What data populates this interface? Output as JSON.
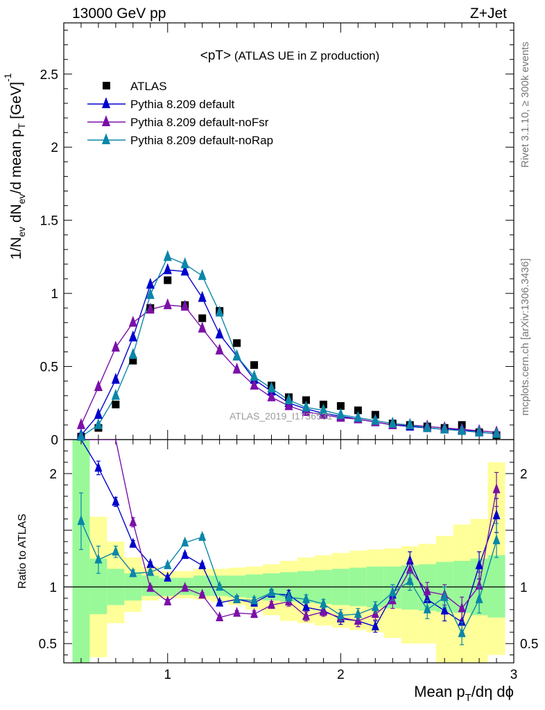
{
  "header": {
    "left": "13000 GeV pp",
    "right": "Z+Jet"
  },
  "side_labels": {
    "rivet": "Rivet 3.1.10, ≥ 300k events",
    "mcplots": "mcplots.cern.ch [arXiv:1306.3436]"
  },
  "main_plot": {
    "title_main": "<pT>",
    "title_sub": " (ATLAS UE in Z production)",
    "watermark": "ATLAS_2019_I1736531",
    "ylabel": "1/N_ev dN_ev/d mean p_T [GeV]^-1",
    "yticks": [
      {
        "v": 0,
        "label": "0"
      },
      {
        "v": 0.5,
        "label": "0.5"
      },
      {
        "v": 1,
        "label": "1"
      },
      {
        "v": 1.5,
        "label": "1.5"
      },
      {
        "v": 2,
        "label": "2"
      },
      {
        "v": 2.5,
        "label": "2.5"
      }
    ]
  },
  "ratio_plot": {
    "ylabel": "Ratio to ATLAS",
    "yticks": [
      {
        "v": 0.5,
        "label": "0.5"
      },
      {
        "v": 1,
        "label": "1"
      },
      {
        "v": 2,
        "label": "2"
      }
    ],
    "xlabel": "Mean p_T/dη dϕ",
    "xticks": [
      {
        "v": 1,
        "label": "1"
      },
      {
        "v": 2,
        "label": "2"
      },
      {
        "v": 3,
        "label": "3"
      }
    ]
  },
  "colors": {
    "atlas": "#000000",
    "default": "#0000cc",
    "nofsr": "#7a10a8",
    "norap": "#0a86a8",
    "band_inner": "#99f999",
    "band_outer": "#ffff99"
  },
  "chart_data": {
    "type": "scatter",
    "title": "<pT> (ATLAS UE in Z production)",
    "xlabel": "Mean p_T/dη dϕ",
    "ylabel": "1/N_ev dN_ev/d mean p_T [GeV]^-1",
    "xlim": [
      0.4,
      3.0
    ],
    "ylim": [
      0,
      2.85
    ],
    "ratio_ylim": [
      0.33,
      2.3
    ],
    "legend_position": "top-left",
    "x": [
      0.5,
      0.6,
      0.7,
      0.8,
      0.9,
      1.0,
      1.1,
      1.2,
      1.3,
      1.4,
      1.5,
      1.6,
      1.7,
      1.8,
      1.9,
      2.0,
      2.1,
      2.2,
      2.3,
      2.4,
      2.5,
      2.6,
      2.7,
      2.8,
      2.9
    ],
    "series": [
      {
        "name": "ATLAS",
        "color": "#000000",
        "marker": "square",
        "values": [
          0.02,
          0.08,
          0.24,
          0.54,
          0.9,
          1.09,
          0.92,
          0.83,
          0.88,
          0.66,
          0.51,
          0.37,
          0.29,
          0.27,
          0.24,
          0.23,
          0.2,
          0.17,
          0.11,
          0.1,
          0.09,
          0.08,
          0.1,
          0.05,
          0.03
        ],
        "ratio": [
          1.0,
          1.0,
          1.0,
          1.0,
          1.0,
          1.0,
          1.0,
          1.0,
          1.0,
          1.0,
          1.0,
          1.0,
          1.0,
          1.0,
          1.0,
          1.0,
          1.0,
          1.0,
          1.0,
          1.0,
          1.0,
          1.0,
          1.0,
          1.0,
          1.0
        ]
      },
      {
        "name": "Pythia 8.209 default",
        "color": "#0000cc",
        "marker": "triangle",
        "values": [
          0.03,
          0.17,
          0.41,
          0.7,
          1.06,
          1.16,
          1.15,
          0.97,
          0.72,
          0.57,
          0.41,
          0.33,
          0.25,
          0.21,
          0.18,
          0.16,
          0.14,
          0.12,
          0.1,
          0.09,
          0.08,
          0.07,
          0.07,
          0.05,
          0.04
        ],
        "ratio": [
          null,
          2.05,
          1.75,
          1.38,
          1.2,
          1.08,
          1.28,
          1.19,
          0.86,
          0.89,
          0.86,
          0.94,
          0.93,
          0.82,
          0.79,
          0.72,
          0.7,
          0.65,
          0.93,
          1.23,
          0.89,
          0.79,
          0.69,
          1.19,
          1.63
        ],
        "ratio_err": [
          0,
          0.06,
          0.04,
          0.03,
          0.02,
          0.02,
          0.02,
          0.02,
          0.02,
          0.03,
          0.03,
          0.03,
          0.04,
          0.04,
          0.04,
          0.05,
          0.05,
          0.05,
          0.07,
          0.08,
          0.08,
          0.09,
          0.1,
          0.12,
          0.15
        ]
      },
      {
        "name": "Pythia 8.209 default-noFsr",
        "color": "#7a10a8",
        "marker": "triangle",
        "values": [
          0.1,
          0.36,
          0.63,
          0.8,
          0.89,
          0.92,
          0.91,
          0.76,
          0.61,
          0.48,
          0.37,
          0.29,
          0.23,
          0.19,
          0.17,
          0.15,
          0.14,
          0.12,
          0.1,
          0.1,
          0.09,
          0.08,
          0.07,
          0.06,
          0.05
        ],
        "ratio": [
          null,
          null,
          null,
          1.57,
          0.99,
          0.87,
          0.99,
          0.93,
          0.73,
          0.77,
          0.76,
          0.84,
          0.87,
          0.74,
          0.78,
          0.73,
          0.7,
          0.76,
          0.88,
          1.15,
          0.96,
          0.93,
          0.81,
          1.01,
          1.86
        ],
        "ratio_err": [
          0,
          0,
          0,
          0.04,
          0.02,
          0.02,
          0.02,
          0.02,
          0.02,
          0.02,
          0.03,
          0.03,
          0.04,
          0.04,
          0.04,
          0.04,
          0.05,
          0.05,
          0.07,
          0.08,
          0.08,
          0.09,
          0.1,
          0.12,
          0.15
        ]
      },
      {
        "name": "Pythia 8.209 default-noRap",
        "color": "#0a86a8",
        "marker": "triangle",
        "values": [
          0.02,
          0.1,
          0.3,
          0.58,
          0.99,
          1.25,
          1.2,
          1.12,
          0.87,
          0.57,
          0.43,
          0.35,
          0.27,
          0.22,
          0.2,
          0.17,
          0.15,
          0.13,
          0.11,
          0.1,
          0.08,
          0.07,
          0.06,
          0.05,
          0.04
        ],
        "ratio": [
          1.58,
          1.24,
          1.31,
          1.12,
          1.13,
          1.19,
          1.39,
          1.44,
          1.0,
          0.89,
          0.88,
          0.95,
          0.91,
          0.89,
          0.85,
          0.75,
          0.76,
          0.82,
          0.95,
          1.05,
          0.8,
          0.91,
          0.59,
          0.89,
          1.41
        ],
        "ratio_err": [
          0.25,
          0.12,
          0.05,
          0.03,
          0.02,
          0.02,
          0.02,
          0.02,
          0.02,
          0.02,
          0.03,
          0.03,
          0.04,
          0.04,
          0.04,
          0.05,
          0.05,
          0.05,
          0.07,
          0.08,
          0.08,
          0.09,
          0.1,
          0.12,
          0.15
        ]
      }
    ],
    "uncertainty_bands": {
      "edges": [
        0.45,
        0.55,
        0.65,
        0.75,
        0.85,
        0.95,
        1.05,
        1.15,
        1.25,
        1.35,
        1.45,
        1.55,
        1.65,
        1.75,
        1.85,
        1.95,
        2.05,
        2.15,
        2.25,
        2.35,
        2.45,
        2.55,
        2.65,
        2.75,
        2.85,
        2.95
      ],
      "inner_lo": [
        0.33,
        0.76,
        0.84,
        0.88,
        0.92,
        0.92,
        0.93,
        0.92,
        0.92,
        0.91,
        0.9,
        0.88,
        0.87,
        0.86,
        0.85,
        0.84,
        0.83,
        0.82,
        0.81,
        0.8,
        0.79,
        0.78,
        0.77,
        0.75,
        0.73
      ],
      "inner_hi": [
        2.3,
        1.25,
        1.16,
        1.12,
        1.1,
        1.08,
        1.08,
        1.1,
        1.1,
        1.1,
        1.11,
        1.12,
        1.13,
        1.14,
        1.15,
        1.16,
        1.17,
        1.18,
        1.18,
        1.19,
        1.2,
        1.22,
        1.23,
        1.25,
        1.28
      ],
      "outer_lo": [
        0.33,
        0.38,
        0.68,
        0.78,
        0.88,
        0.9,
        0.9,
        0.89,
        0.87,
        0.84,
        0.8,
        0.75,
        0.7,
        0.68,
        0.66,
        0.64,
        0.62,
        0.6,
        0.55,
        0.5,
        0.5,
        0.33,
        0.33,
        0.33,
        0.4
      ],
      "outer_hi": [
        2.3,
        1.62,
        1.4,
        1.26,
        1.18,
        1.14,
        1.14,
        1.16,
        1.16,
        1.17,
        1.18,
        1.2,
        1.23,
        1.26,
        1.28,
        1.3,
        1.32,
        1.33,
        1.34,
        1.36,
        1.38,
        1.45,
        1.55,
        1.6,
        2.1
      ]
    }
  }
}
